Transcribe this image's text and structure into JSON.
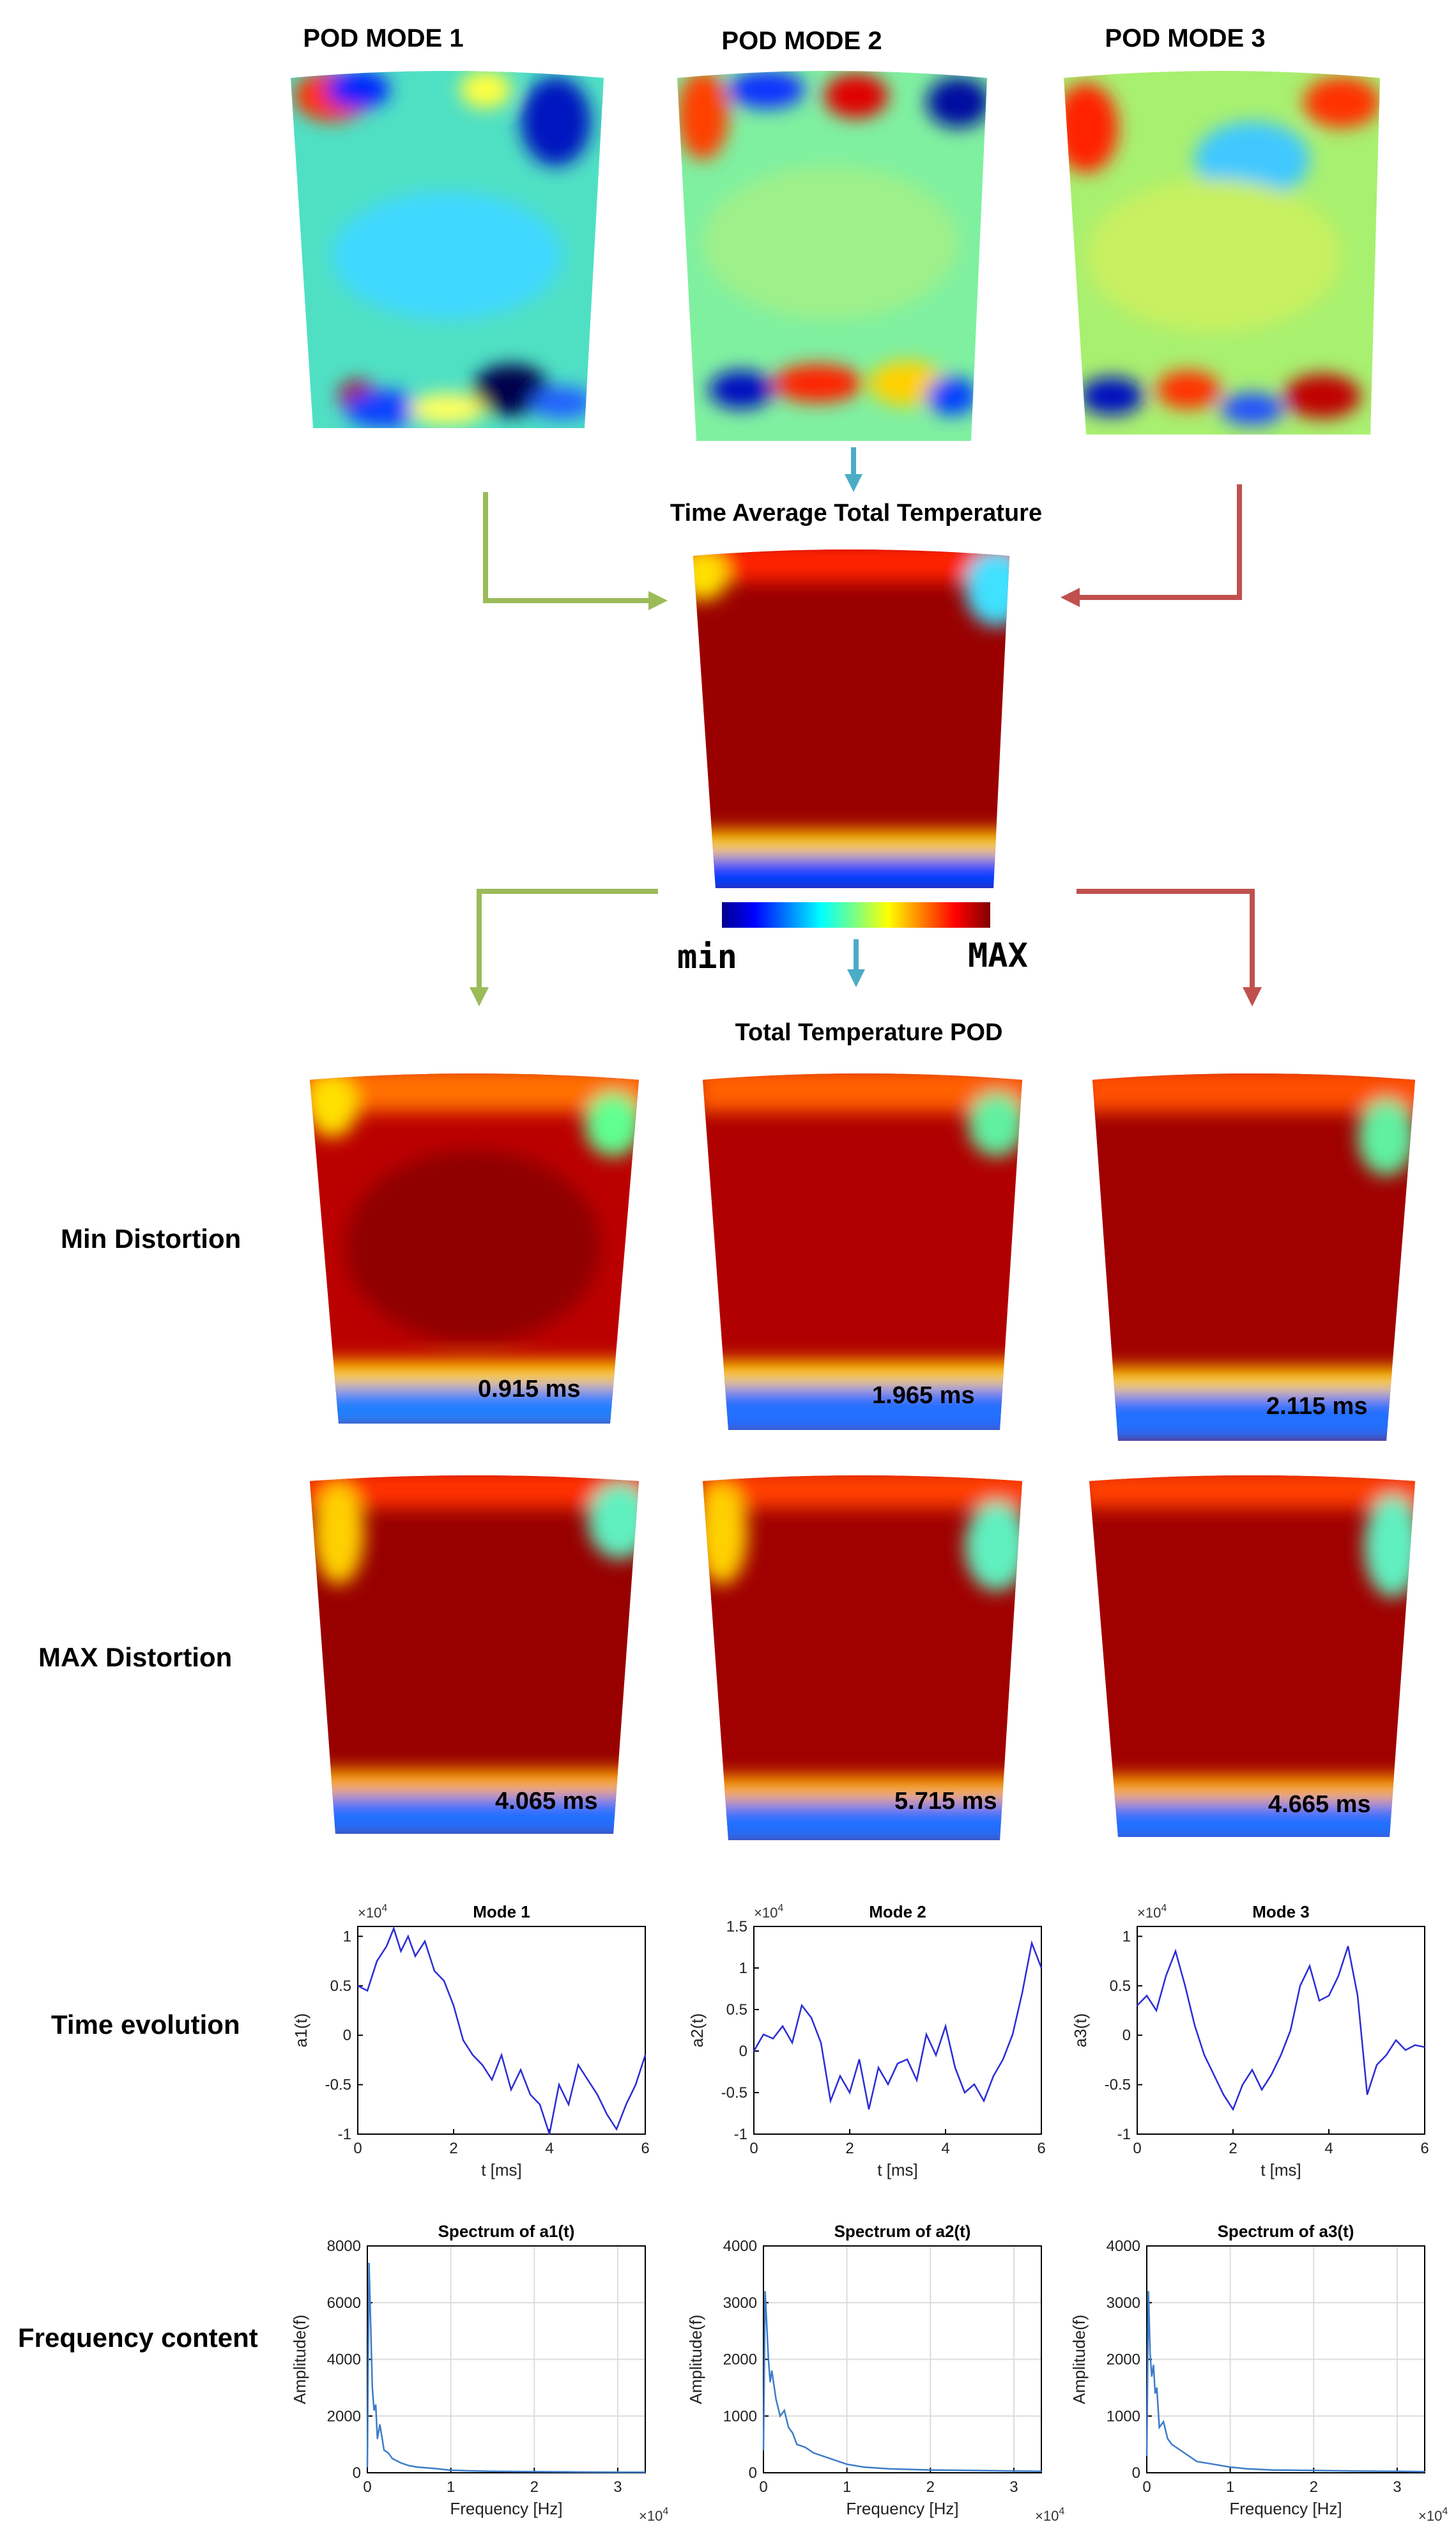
{
  "mode_titles": [
    "POD MODE 1",
    "POD MODE 2",
    "POD MODE 3"
  ],
  "time_avg_title": "Time Average Total Temperature",
  "colorbar": {
    "min_label": "min",
    "max_label": "MAX"
  },
  "pod_title": "Total Temperature POD",
  "row_labels": {
    "min": "Min Distortion",
    "max": "MAX Distortion",
    "time": "Time evolution",
    "freq": "Frequency content"
  },
  "min_times": [
    "0.915 ms",
    "1.965 ms",
    "2.115 ms"
  ],
  "max_times": [
    "4.065 ms",
    "5.715 ms",
    "4.665 ms"
  ],
  "arrow_colors": {
    "green": "#9bbb59",
    "blue": "#4bacc6",
    "red": "#c0504d"
  },
  "chart_data": [
    {
      "type": "line",
      "title": "Mode 1",
      "xlabel": "t [ms]",
      "ylabel": "a1(t)",
      "exponent": "×10",
      "exponent_power": "4",
      "xlim": [
        0,
        6
      ],
      "ylim": [
        -1,
        1.1
      ],
      "xticks": [
        "0",
        "2",
        "4",
        "6"
      ],
      "yticks": [
        "-1",
        "-0.5",
        "0",
        "0.5",
        "1"
      ],
      "x": [
        0,
        0.2,
        0.4,
        0.6,
        0.75,
        0.9,
        1.05,
        1.2,
        1.4,
        1.6,
        1.8,
        2.0,
        2.2,
        2.4,
        2.6,
        2.8,
        3.0,
        3.2,
        3.4,
        3.6,
        3.8,
        4.0,
        4.2,
        4.4,
        4.6,
        4.8,
        5.0,
        5.2,
        5.4,
        5.6,
        5.8,
        6.0
      ],
      "values": [
        0.5,
        0.45,
        0.75,
        0.9,
        1.08,
        0.85,
        1.0,
        0.8,
        0.95,
        0.65,
        0.55,
        0.3,
        -0.05,
        -0.2,
        -0.3,
        -0.45,
        -0.2,
        -0.55,
        -0.35,
        -0.6,
        -0.7,
        -1.0,
        -0.5,
        -0.7,
        -0.3,
        -0.45,
        -0.6,
        -0.8,
        -0.95,
        -0.7,
        -0.5,
        -0.2
      ]
    },
    {
      "type": "line",
      "title": "Mode 2",
      "xlabel": "t [ms]",
      "ylabel": "a2(t)",
      "exponent": "×10",
      "exponent_power": "4",
      "xlim": [
        0,
        6
      ],
      "ylim": [
        -1,
        1.5
      ],
      "xticks": [
        "0",
        "2",
        "4",
        "6"
      ],
      "yticks": [
        "-1",
        "-0.5",
        "0",
        "0.5",
        "1",
        "1.5"
      ],
      "x": [
        0,
        0.2,
        0.4,
        0.6,
        0.8,
        1.0,
        1.2,
        1.4,
        1.6,
        1.8,
        2.0,
        2.2,
        2.4,
        2.6,
        2.8,
        3.0,
        3.2,
        3.4,
        3.6,
        3.8,
        4.0,
        4.2,
        4.4,
        4.6,
        4.8,
        5.0,
        5.2,
        5.4,
        5.6,
        5.8,
        6.0
      ],
      "values": [
        0.0,
        0.2,
        0.15,
        0.3,
        0.1,
        0.55,
        0.4,
        0.1,
        -0.6,
        -0.3,
        -0.5,
        -0.1,
        -0.7,
        -0.2,
        -0.4,
        -0.15,
        -0.1,
        -0.35,
        0.2,
        -0.05,
        0.3,
        -0.2,
        -0.5,
        -0.4,
        -0.6,
        -0.3,
        -0.1,
        0.2,
        0.7,
        1.3,
        1.0
      ]
    },
    {
      "type": "line",
      "title": "Mode 3",
      "xlabel": "t [ms]",
      "ylabel": "a3(t)",
      "exponent": "×10",
      "exponent_power": "4",
      "xlim": [
        0,
        6
      ],
      "ylim": [
        -1,
        1.1
      ],
      "xticks": [
        "0",
        "2",
        "4",
        "6"
      ],
      "yticks": [
        "-1",
        "-0.5",
        "0",
        "0.5",
        "1"
      ],
      "x": [
        0,
        0.2,
        0.4,
        0.6,
        0.8,
        1.0,
        1.2,
        1.4,
        1.6,
        1.8,
        2.0,
        2.2,
        2.4,
        2.6,
        2.8,
        3.0,
        3.2,
        3.4,
        3.6,
        3.8,
        4.0,
        4.2,
        4.4,
        4.6,
        4.8,
        5.0,
        5.2,
        5.4,
        5.6,
        5.8,
        6.0
      ],
      "values": [
        0.3,
        0.4,
        0.25,
        0.6,
        0.85,
        0.5,
        0.1,
        -0.2,
        -0.4,
        -0.6,
        -0.75,
        -0.5,
        -0.35,
        -0.55,
        -0.4,
        -0.2,
        0.05,
        0.5,
        0.7,
        0.35,
        0.4,
        0.6,
        0.9,
        0.4,
        -0.6,
        -0.3,
        -0.2,
        -0.05,
        -0.15,
        -0.1,
        -0.12
      ]
    },
    {
      "type": "line",
      "title": "Spectrum of a1(t)",
      "xlabel": "Frequency [Hz]",
      "ylabel": "Amplitude(f)",
      "exponent": "×10",
      "exponent_power": "4",
      "xlim": [
        0,
        3.33
      ],
      "ylim": [
        0,
        8000
      ],
      "xticks": [
        "0",
        "1",
        "2",
        "3"
      ],
      "yticks": [
        "0",
        "2000",
        "4000",
        "6000",
        "8000"
      ],
      "x": [
        0,
        0.02,
        0.04,
        0.06,
        0.08,
        0.1,
        0.12,
        0.15,
        0.2,
        0.25,
        0.3,
        0.4,
        0.5,
        0.6,
        0.8,
        1.0,
        1.2,
        1.5,
        2.0,
        2.5,
        3.0,
        3.33
      ],
      "values": [
        200,
        7400,
        5200,
        3000,
        2200,
        2400,
        1200,
        1700,
        800,
        700,
        500,
        350,
        250,
        200,
        150,
        90,
        70,
        50,
        40,
        30,
        20,
        20
      ]
    },
    {
      "type": "line",
      "title": "Spectrum of a2(t)",
      "xlabel": "Frequency [Hz]",
      "ylabel": "Amplitude(f)",
      "exponent": "×10",
      "exponent_power": "4",
      "xlim": [
        0,
        3.33
      ],
      "ylim": [
        0,
        4000
      ],
      "xticks": [
        "0",
        "1",
        "2",
        "3"
      ],
      "yticks": [
        "0",
        "1000",
        "2000",
        "3000",
        "4000"
      ],
      "x": [
        0,
        0.02,
        0.04,
        0.06,
        0.08,
        0.1,
        0.15,
        0.2,
        0.25,
        0.3,
        0.35,
        0.4,
        0.5,
        0.6,
        0.8,
        1.0,
        1.2,
        1.5,
        2.0,
        2.5,
        3.0,
        3.33
      ],
      "values": [
        400,
        3200,
        2600,
        2000,
        1600,
        1800,
        1300,
        1000,
        1100,
        800,
        700,
        500,
        450,
        350,
        250,
        150,
        100,
        70,
        50,
        40,
        30,
        25
      ]
    },
    {
      "type": "line",
      "title": "Spectrum of a3(t)",
      "xlabel": "Frequency [Hz]",
      "ylabel": "Amplitude(f)",
      "exponent": "×10",
      "exponent_power": "4",
      "xlim": [
        0,
        3.33
      ],
      "ylim": [
        0,
        4000
      ],
      "xticks": [
        "0",
        "1",
        "2",
        "3"
      ],
      "yticks": [
        "0",
        "1000",
        "2000",
        "3000",
        "4000"
      ],
      "x": [
        0,
        0.02,
        0.04,
        0.06,
        0.08,
        0.1,
        0.12,
        0.15,
        0.2,
        0.25,
        0.3,
        0.4,
        0.5,
        0.6,
        0.8,
        1.0,
        1.2,
        1.5,
        2.0,
        2.5,
        3.0,
        3.33
      ],
      "values": [
        300,
        3200,
        2100,
        1700,
        1900,
        1400,
        1500,
        800,
        900,
        600,
        500,
        400,
        300,
        200,
        150,
        100,
        70,
        50,
        40,
        30,
        25,
        20
      ]
    }
  ]
}
